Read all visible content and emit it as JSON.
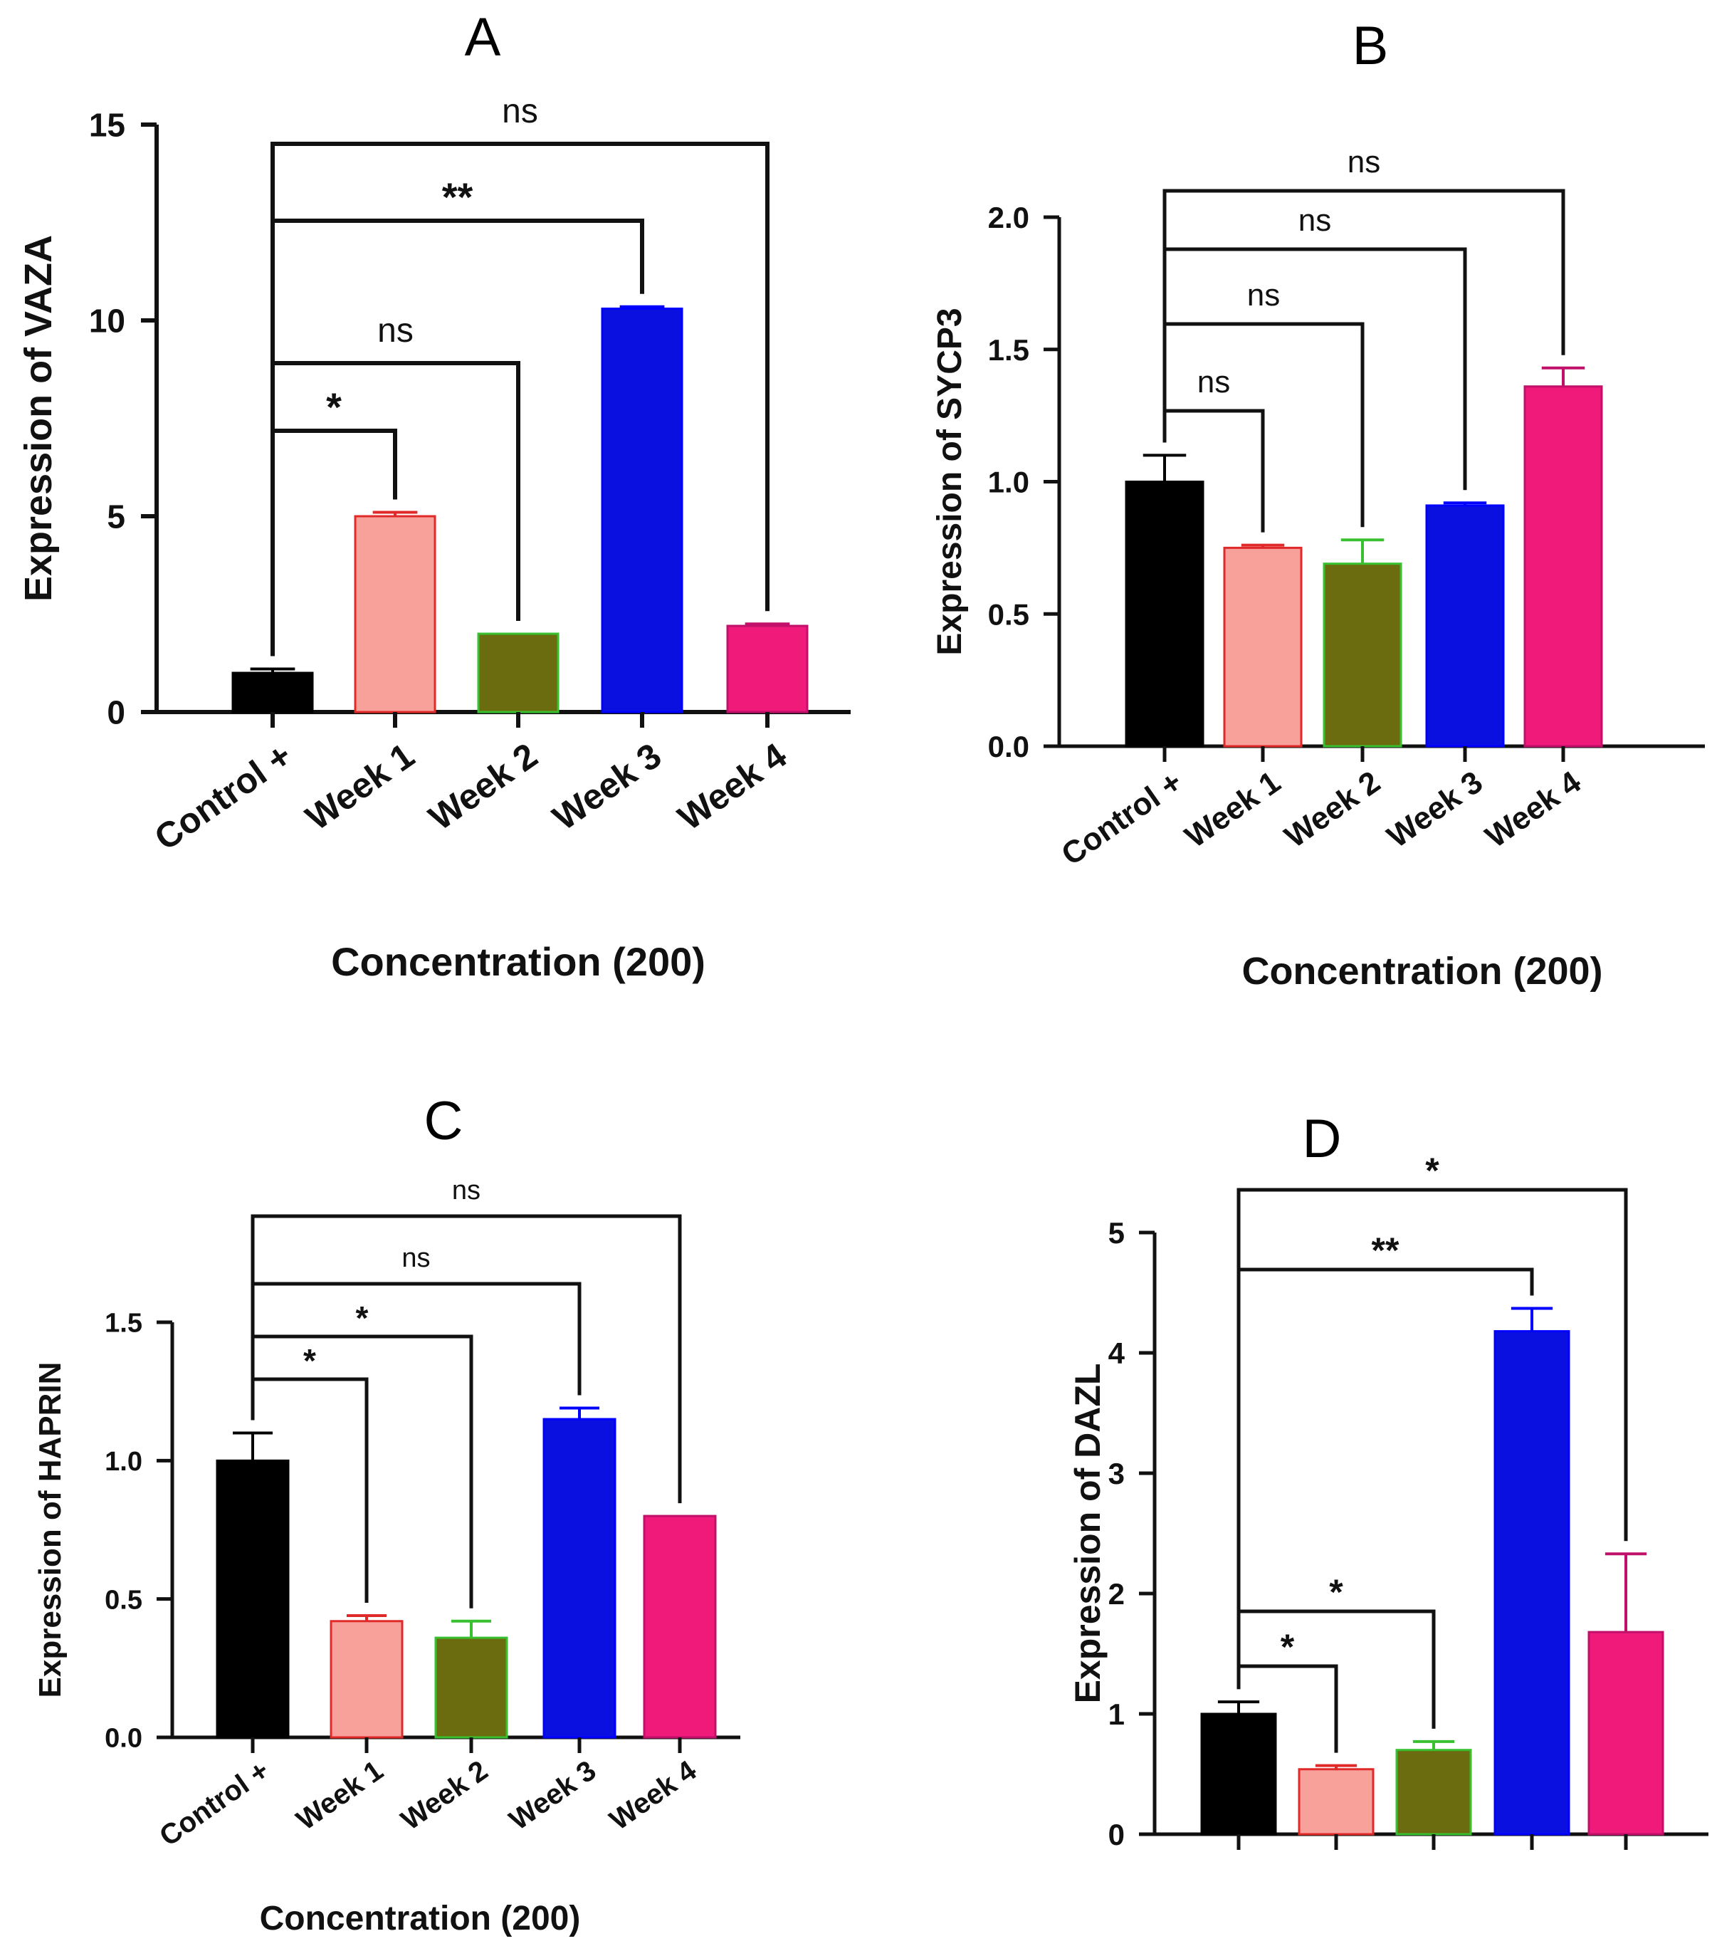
{
  "chart_data": [
    {
      "panel": "A",
      "type": "bar",
      "categories": [
        "Control +",
        "Week 1",
        "Week 2",
        "Week 3",
        "Week 4"
      ],
      "values": [
        1.0,
        5.0,
        2.0,
        10.3,
        2.2
      ],
      "errors": [
        0.1,
        0.1,
        0.0,
        0.05,
        0.05
      ],
      "colors": [
        "#000000",
        "#f8a09a",
        "#6b6b10",
        "#0a10e0",
        "#f01a7a"
      ],
      "edge_colors": [
        "#000000",
        "#e02a2a",
        "#38c030",
        "#0000ff",
        "#c0106a"
      ],
      "xlabel": "Concentration (200)",
      "ylabel": "Expression of VAZA",
      "ylim": [
        0,
        15
      ],
      "yticks": [
        "0",
        "5",
        "10",
        "15"
      ],
      "comparisons": [
        {
          "from": 0,
          "to": 1,
          "label": "*"
        },
        {
          "from": 0,
          "to": 2,
          "label": "ns"
        },
        {
          "from": 0,
          "to": 3,
          "label": "**"
        },
        {
          "from": 0,
          "to": 4,
          "label": "ns"
        }
      ]
    },
    {
      "panel": "B",
      "type": "bar",
      "categories": [
        "Control +",
        "Week 1",
        "Week 2",
        "Week 3",
        "Week 4"
      ],
      "values": [
        1.0,
        0.75,
        0.69,
        0.91,
        1.36
      ],
      "errors": [
        0.1,
        0.01,
        0.09,
        0.01,
        0.07
      ],
      "colors": [
        "#000000",
        "#f8a09a",
        "#6b6b10",
        "#0a10e0",
        "#f01a7a"
      ],
      "edge_colors": [
        "#000000",
        "#e02a2a",
        "#38c030",
        "#0000ff",
        "#c0106a"
      ],
      "xlabel": "Concentration (200)",
      "ylabel": "Expression of SYCP3",
      "ylim": [
        0,
        2.0
      ],
      "yticks": [
        "0.0",
        "0.5",
        "1.0",
        "1.5",
        "2.0"
      ],
      "comparisons": [
        {
          "from": 0,
          "to": 1,
          "label": "ns"
        },
        {
          "from": 0,
          "to": 2,
          "label": "ns"
        },
        {
          "from": 0,
          "to": 3,
          "label": "ns"
        },
        {
          "from": 0,
          "to": 4,
          "label": "ns"
        }
      ]
    },
    {
      "panel": "C",
      "type": "bar",
      "categories": [
        "Control +",
        "Week 1",
        "Week 2",
        "Week 3",
        "Week 4"
      ],
      "values": [
        1.0,
        0.42,
        0.36,
        1.15,
        0.8
      ],
      "errors": [
        0.1,
        0.02,
        0.06,
        0.04,
        0.0
      ],
      "colors": [
        "#000000",
        "#f8a09a",
        "#6b6b10",
        "#0a10e0",
        "#f01a7a"
      ],
      "edge_colors": [
        "#000000",
        "#e02a2a",
        "#38c030",
        "#0000ff",
        "#c0106a"
      ],
      "xlabel": "Concentration (200)",
      "ylabel": "Expression of HAPRIN",
      "ylim": [
        0,
        1.5
      ],
      "yticks": [
        "0.0",
        "0.5",
        "1.0",
        "1.5"
      ],
      "comparisons": [
        {
          "from": 0,
          "to": 1,
          "label": "*"
        },
        {
          "from": 0,
          "to": 2,
          "label": "*"
        },
        {
          "from": 0,
          "to": 3,
          "label": "ns"
        },
        {
          "from": 0,
          "to": 4,
          "label": "ns"
        }
      ]
    },
    {
      "panel": "D",
      "type": "bar",
      "categories": [
        "",
        "",
        "",
        "",
        ""
      ],
      "values": [
        1.0,
        0.54,
        0.7,
        4.18,
        1.68
      ],
      "errors": [
        0.1,
        0.03,
        0.07,
        0.19,
        0.65
      ],
      "colors": [
        "#000000",
        "#f8a09a",
        "#6b6b10",
        "#0a10e0",
        "#f01a7a"
      ],
      "edge_colors": [
        "#000000",
        "#e02a2a",
        "#38c030",
        "#0000ff",
        "#c0106a"
      ],
      "xlabel": "",
      "ylabel": "Expression of DAZL",
      "ylim": [
        0,
        5
      ],
      "yticks": [
        "0",
        "1",
        "2",
        "3",
        "4",
        "5"
      ],
      "comparisons": [
        {
          "from": 0,
          "to": 1,
          "label": "*"
        },
        {
          "from": 0,
          "to": 2,
          "label": "*"
        },
        {
          "from": 0,
          "to": 3,
          "label": "**"
        },
        {
          "from": 0,
          "to": 4,
          "label": "*"
        }
      ]
    }
  ]
}
